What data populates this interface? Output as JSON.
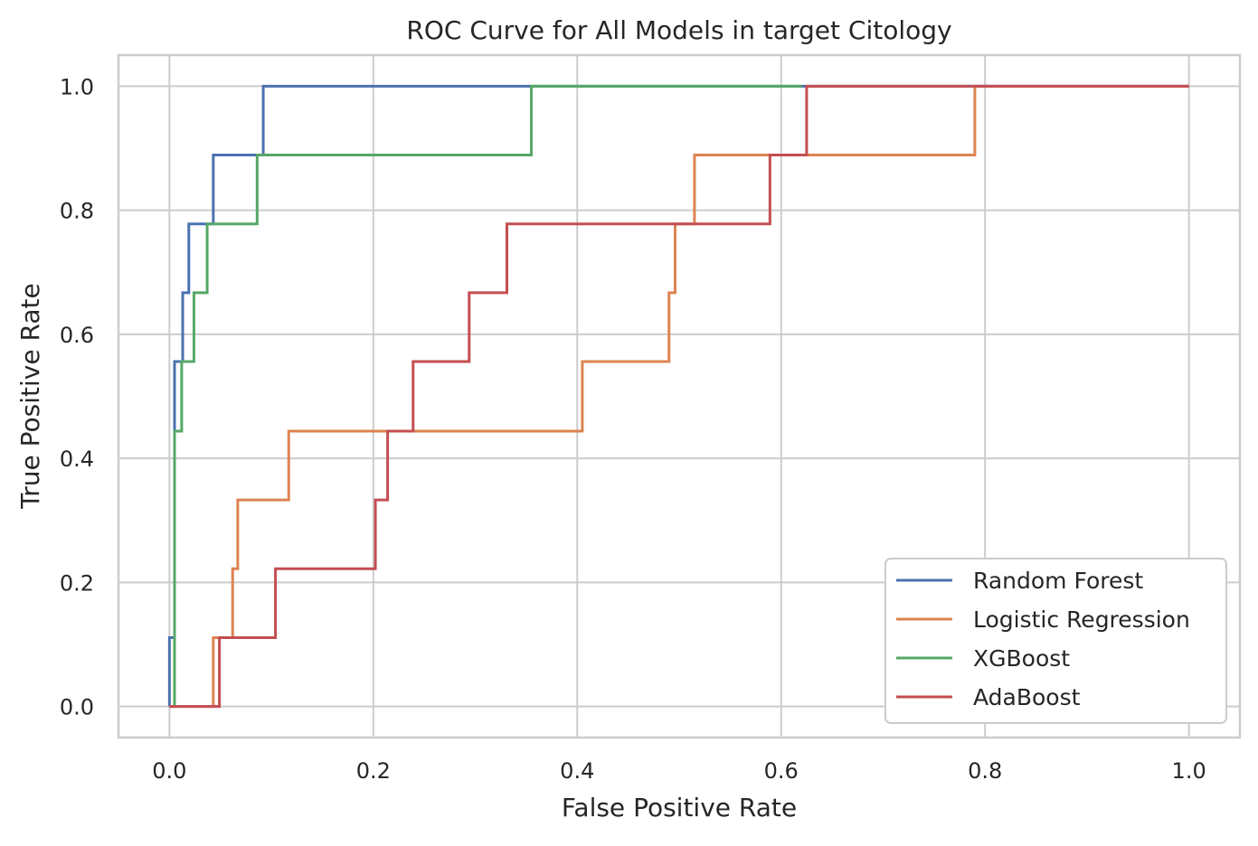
{
  "chart_data": {
    "type": "line",
    "step": "post",
    "title": "ROC Curve for All Models in target Citology",
    "xlabel": "False Positive Rate",
    "ylabel": "True Positive Rate",
    "xlim": [
      -0.05,
      1.05
    ],
    "ylim": [
      -0.05,
      1.05
    ],
    "xticks": [
      0.0,
      0.2,
      0.4,
      0.6,
      0.8,
      1.0
    ],
    "yticks": [
      0.0,
      0.2,
      0.4,
      0.6,
      0.8,
      1.0
    ],
    "xtick_labels": [
      "0.0",
      "0.2",
      "0.4",
      "0.6",
      "0.8",
      "1.0"
    ],
    "ytick_labels": [
      "0.0",
      "0.2",
      "0.4",
      "0.6",
      "0.8",
      "1.0"
    ],
    "grid": true,
    "legend_position": "lower-right",
    "series": [
      {
        "name": "Random Forest",
        "color": "#4c72b0",
        "x": [
          0.0,
          0.0,
          0.005,
          0.005,
          0.013,
          0.013,
          0.019,
          0.019,
          0.043,
          0.043,
          0.092,
          0.092,
          0.355,
          1.0
        ],
        "y": [
          0.0,
          0.111,
          0.111,
          0.556,
          0.556,
          0.667,
          0.667,
          0.778,
          0.778,
          0.889,
          0.889,
          1.0,
          1.0,
          1.0
        ]
      },
      {
        "name": "Logistic Regression",
        "color": "#dd8452",
        "x": [
          0.0,
          0.043,
          0.043,
          0.062,
          0.062,
          0.067,
          0.067,
          0.117,
          0.117,
          0.405,
          0.405,
          0.49,
          0.49,
          0.496,
          0.496,
          0.515,
          0.515,
          0.79,
          0.79,
          1.0
        ],
        "y": [
          0.0,
          0.0,
          0.111,
          0.111,
          0.222,
          0.222,
          0.333,
          0.333,
          0.444,
          0.444,
          0.556,
          0.556,
          0.667,
          0.667,
          0.778,
          0.778,
          0.889,
          0.889,
          1.0,
          1.0
        ]
      },
      {
        "name": "XGBoost",
        "color": "#55a868",
        "x": [
          0.0,
          0.005,
          0.005,
          0.012,
          0.012,
          0.024,
          0.024,
          0.037,
          0.037,
          0.086,
          0.086,
          0.355,
          0.355,
          0.62
        ],
        "y": [
          0.0,
          0.0,
          0.444,
          0.444,
          0.556,
          0.556,
          0.667,
          0.667,
          0.778,
          0.778,
          0.889,
          0.889,
          1.0,
          1.0
        ]
      },
      {
        "name": "AdaBoost",
        "color": "#c44e52",
        "x": [
          0.0,
          0.049,
          0.049,
          0.104,
          0.104,
          0.202,
          0.202,
          0.214,
          0.214,
          0.239,
          0.239,
          0.294,
          0.294,
          0.331,
          0.331,
          0.589,
          0.589,
          0.625,
          0.625,
          1.0
        ],
        "y": [
          0.0,
          0.0,
          0.111,
          0.111,
          0.222,
          0.222,
          0.333,
          0.333,
          0.444,
          0.444,
          0.556,
          0.556,
          0.667,
          0.667,
          0.778,
          0.778,
          0.889,
          0.889,
          1.0,
          1.0
        ]
      }
    ]
  }
}
